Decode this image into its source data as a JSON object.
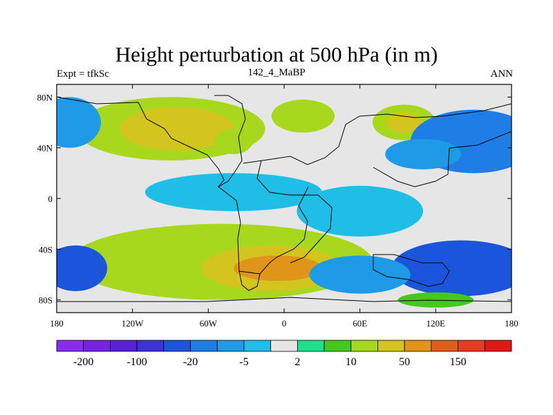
{
  "chart_data": {
    "type": "heatmap",
    "title": "Height perturbation at 500 hPa (in m)",
    "left_string": "Expt = tfkSc",
    "center_string": "142_4_MaBP",
    "right_string": "ANN",
    "x_ticks": [
      {
        "value": -180,
        "label": "180"
      },
      {
        "value": -120,
        "label": "120W"
      },
      {
        "value": -60,
        "label": "60W"
      },
      {
        "value": 0,
        "label": "0"
      },
      {
        "value": 60,
        "label": "60E"
      },
      {
        "value": 120,
        "label": "120E"
      },
      {
        "value": 180,
        "label": "180"
      }
    ],
    "y_ticks": [
      {
        "value": 80,
        "label": "80N"
      },
      {
        "value": 40,
        "label": "40N"
      },
      {
        "value": 0,
        "label": "0"
      },
      {
        "value": -40,
        "label": "40S"
      },
      {
        "value": -80,
        "label": "80S"
      }
    ],
    "xlim": [
      -180,
      180
    ],
    "ylim": [
      -90,
      90
    ],
    "colorbar": {
      "colors": [
        "#8c2bf0",
        "#7722e0",
        "#5a1fd8",
        "#3b33d8",
        "#1a55dc",
        "#1e7ee6",
        "#1e9ae6",
        "#20bde6",
        "#e6e6e6",
        "#20e090",
        "#44c81e",
        "#a8d81e",
        "#d4c41e",
        "#e09418",
        "#e05c18",
        "#ea3a22",
        "#e21612"
      ],
      "labels": [
        {
          "index": 1,
          "text": "-200"
        },
        {
          "index": 3,
          "text": "-100"
        },
        {
          "index": 5,
          "text": "-20"
        },
        {
          "index": 7,
          "text": "-5"
        },
        {
          "index": 9,
          "text": "2"
        },
        {
          "index": 11,
          "text": "10"
        },
        {
          "index": 13,
          "text": "50"
        },
        {
          "index": 15,
          "text": "150"
        }
      ]
    },
    "field_blobs": [
      {
        "lon": -90,
        "lat": 55,
        "rlon": 75,
        "rlat": 25,
        "level": 11
      },
      {
        "lon": -85,
        "lat": 55,
        "rlon": 45,
        "rlat": 17,
        "level": 12
      },
      {
        "lon": -40,
        "lat": 45,
        "rlon": 15,
        "rlat": 10,
        "level": 11
      },
      {
        "lon": 15,
        "lat": 65,
        "rlon": 25,
        "rlat": 13,
        "level": 11
      },
      {
        "lon": 95,
        "lat": 60,
        "rlon": 25,
        "rlat": 14,
        "level": 11
      },
      {
        "lon": 95,
        "lat": 60,
        "rlon": 14,
        "rlat": 8,
        "level": 12
      },
      {
        "lon": 150,
        "lat": 45,
        "rlon": 50,
        "rlat": 25,
        "level": 5
      },
      {
        "lon": 110,
        "lat": 35,
        "rlon": 30,
        "rlat": 12,
        "level": 6
      },
      {
        "lon": -170,
        "lat": 60,
        "rlon": 25,
        "rlat": 20,
        "level": 6
      },
      {
        "lon": -40,
        "lat": 5,
        "rlon": 70,
        "rlat": 15,
        "level": 7
      },
      {
        "lon": 60,
        "lat": -10,
        "rlon": 50,
        "rlat": 20,
        "level": 7
      },
      {
        "lon": -50,
        "lat": -50,
        "rlon": 120,
        "rlat": 30,
        "level": 11
      },
      {
        "lon": -10,
        "lat": -55,
        "rlon": 55,
        "rlat": 18,
        "level": 12
      },
      {
        "lon": -5,
        "lat": -55,
        "rlon": 35,
        "rlat": 10,
        "level": 13
      },
      {
        "lon": 140,
        "lat": -55,
        "rlon": 55,
        "rlat": 22,
        "level": 4
      },
      {
        "lon": -165,
        "lat": -55,
        "rlon": 25,
        "rlat": 18,
        "level": 4
      },
      {
        "lon": 60,
        "lat": -60,
        "rlon": 40,
        "rlat": 15,
        "level": 6
      },
      {
        "lon": 120,
        "lat": -80,
        "rlon": 30,
        "rlat": 6,
        "level": 10
      }
    ]
  }
}
